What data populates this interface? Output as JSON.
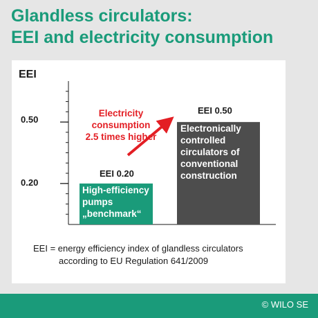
{
  "title_lines": [
    "Glandless circulators:",
    "EEI and electricity consumption"
  ],
  "chart_data": {
    "type": "bar",
    "ylabel": "EEI",
    "ylim": [
      0,
      0.7
    ],
    "yticks": [
      "0.20",
      "0.50"
    ],
    "ytick_values": [
      0.2,
      0.5
    ],
    "grid": false,
    "categories": [
      "High-efficiency pumps „benchmark“",
      "Electronically controlled circulators of conventional construction"
    ],
    "values": [
      0.2,
      0.5
    ],
    "bar_labels": [
      "EEI 0.20",
      "EEI 0.50"
    ],
    "bar_text": [
      [
        "High-efficiency",
        "pumps",
        "„benchmark“"
      ],
      [
        "Electronically",
        "controlled",
        "circulators of",
        "conventional",
        "construction"
      ]
    ],
    "colors": [
      "#1a9b7a",
      "#4d4d4d"
    ],
    "annotation": {
      "lines": [
        "Electricity",
        "consumption",
        "2.5 times higher"
      ],
      "color": "#e31e24"
    }
  },
  "footnote_lines": [
    "EEI = energy efficiency index of glandless circulators",
    "according to EU Regulation 641/2009"
  ],
  "copyright": "© WILO SE",
  "brand_color": "#1a9b7a"
}
